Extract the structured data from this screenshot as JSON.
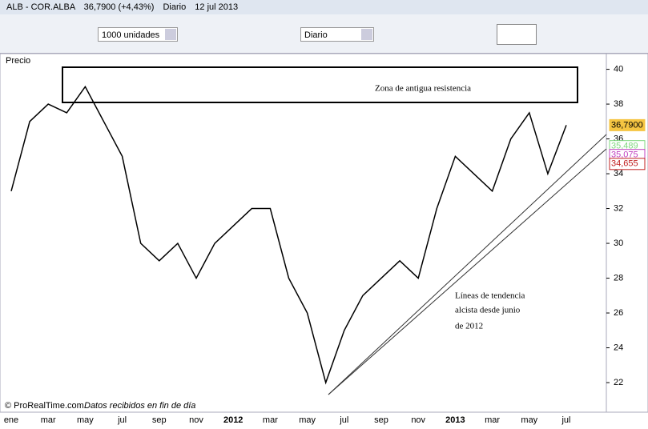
{
  "header": {
    "symbol": "ALB - COR.ALBA",
    "quote": "36,7900 (+4,43%)",
    "period": "Diario",
    "date": "12 jul 2013"
  },
  "toolbar": {
    "quantity": "1000 unidades",
    "timeframe": "Diario"
  },
  "panel": {
    "label": "Precio"
  },
  "footer": {
    "copyright": "© ProRealTime.com",
    "note": "Datos recibidos en fin de día"
  },
  "chart_data": {
    "type": "line",
    "categories": [
      "ene",
      null,
      "mar",
      null,
      "may",
      null,
      "jul",
      null,
      "sep",
      null,
      "nov",
      null,
      "2012",
      null,
      "mar",
      null,
      "may",
      null,
      "jul",
      null,
      "sep",
      null,
      "nov",
      null,
      "2013",
      null,
      "mar",
      null,
      "may",
      null,
      "jul"
    ],
    "series": [
      {
        "name": "Precio",
        "color": "#000000",
        "values": [
          33,
          37,
          38,
          37.5,
          39,
          37,
          35,
          30,
          29,
          30,
          28,
          30,
          31,
          32,
          32,
          28,
          26,
          22,
          25,
          27,
          28,
          29,
          28,
          32,
          35,
          34,
          33,
          36,
          37.5,
          34,
          36.79
        ]
      }
    ],
    "ylim": [
      20.3,
      40.9
    ],
    "yticks": [
      22,
      24,
      26,
      28,
      30,
      32,
      34,
      36,
      38,
      40
    ],
    "tags": [
      {
        "label": "36,7900",
        "value": 36.79,
        "color": "#f5c542"
      },
      {
        "label": "35,489",
        "value": 35.489,
        "color": "#7fd87f"
      },
      {
        "label": "35,075",
        "value": 35.075,
        "color": "#c040c0"
      },
      {
        "label": "34,655",
        "value": 34.655,
        "color": "#c02020"
      }
    ],
    "annotations": [
      "Zona de antigua resistencia",
      "Líneas de tendencia",
      "alcista desde junio",
      "de 2012"
    ]
  }
}
